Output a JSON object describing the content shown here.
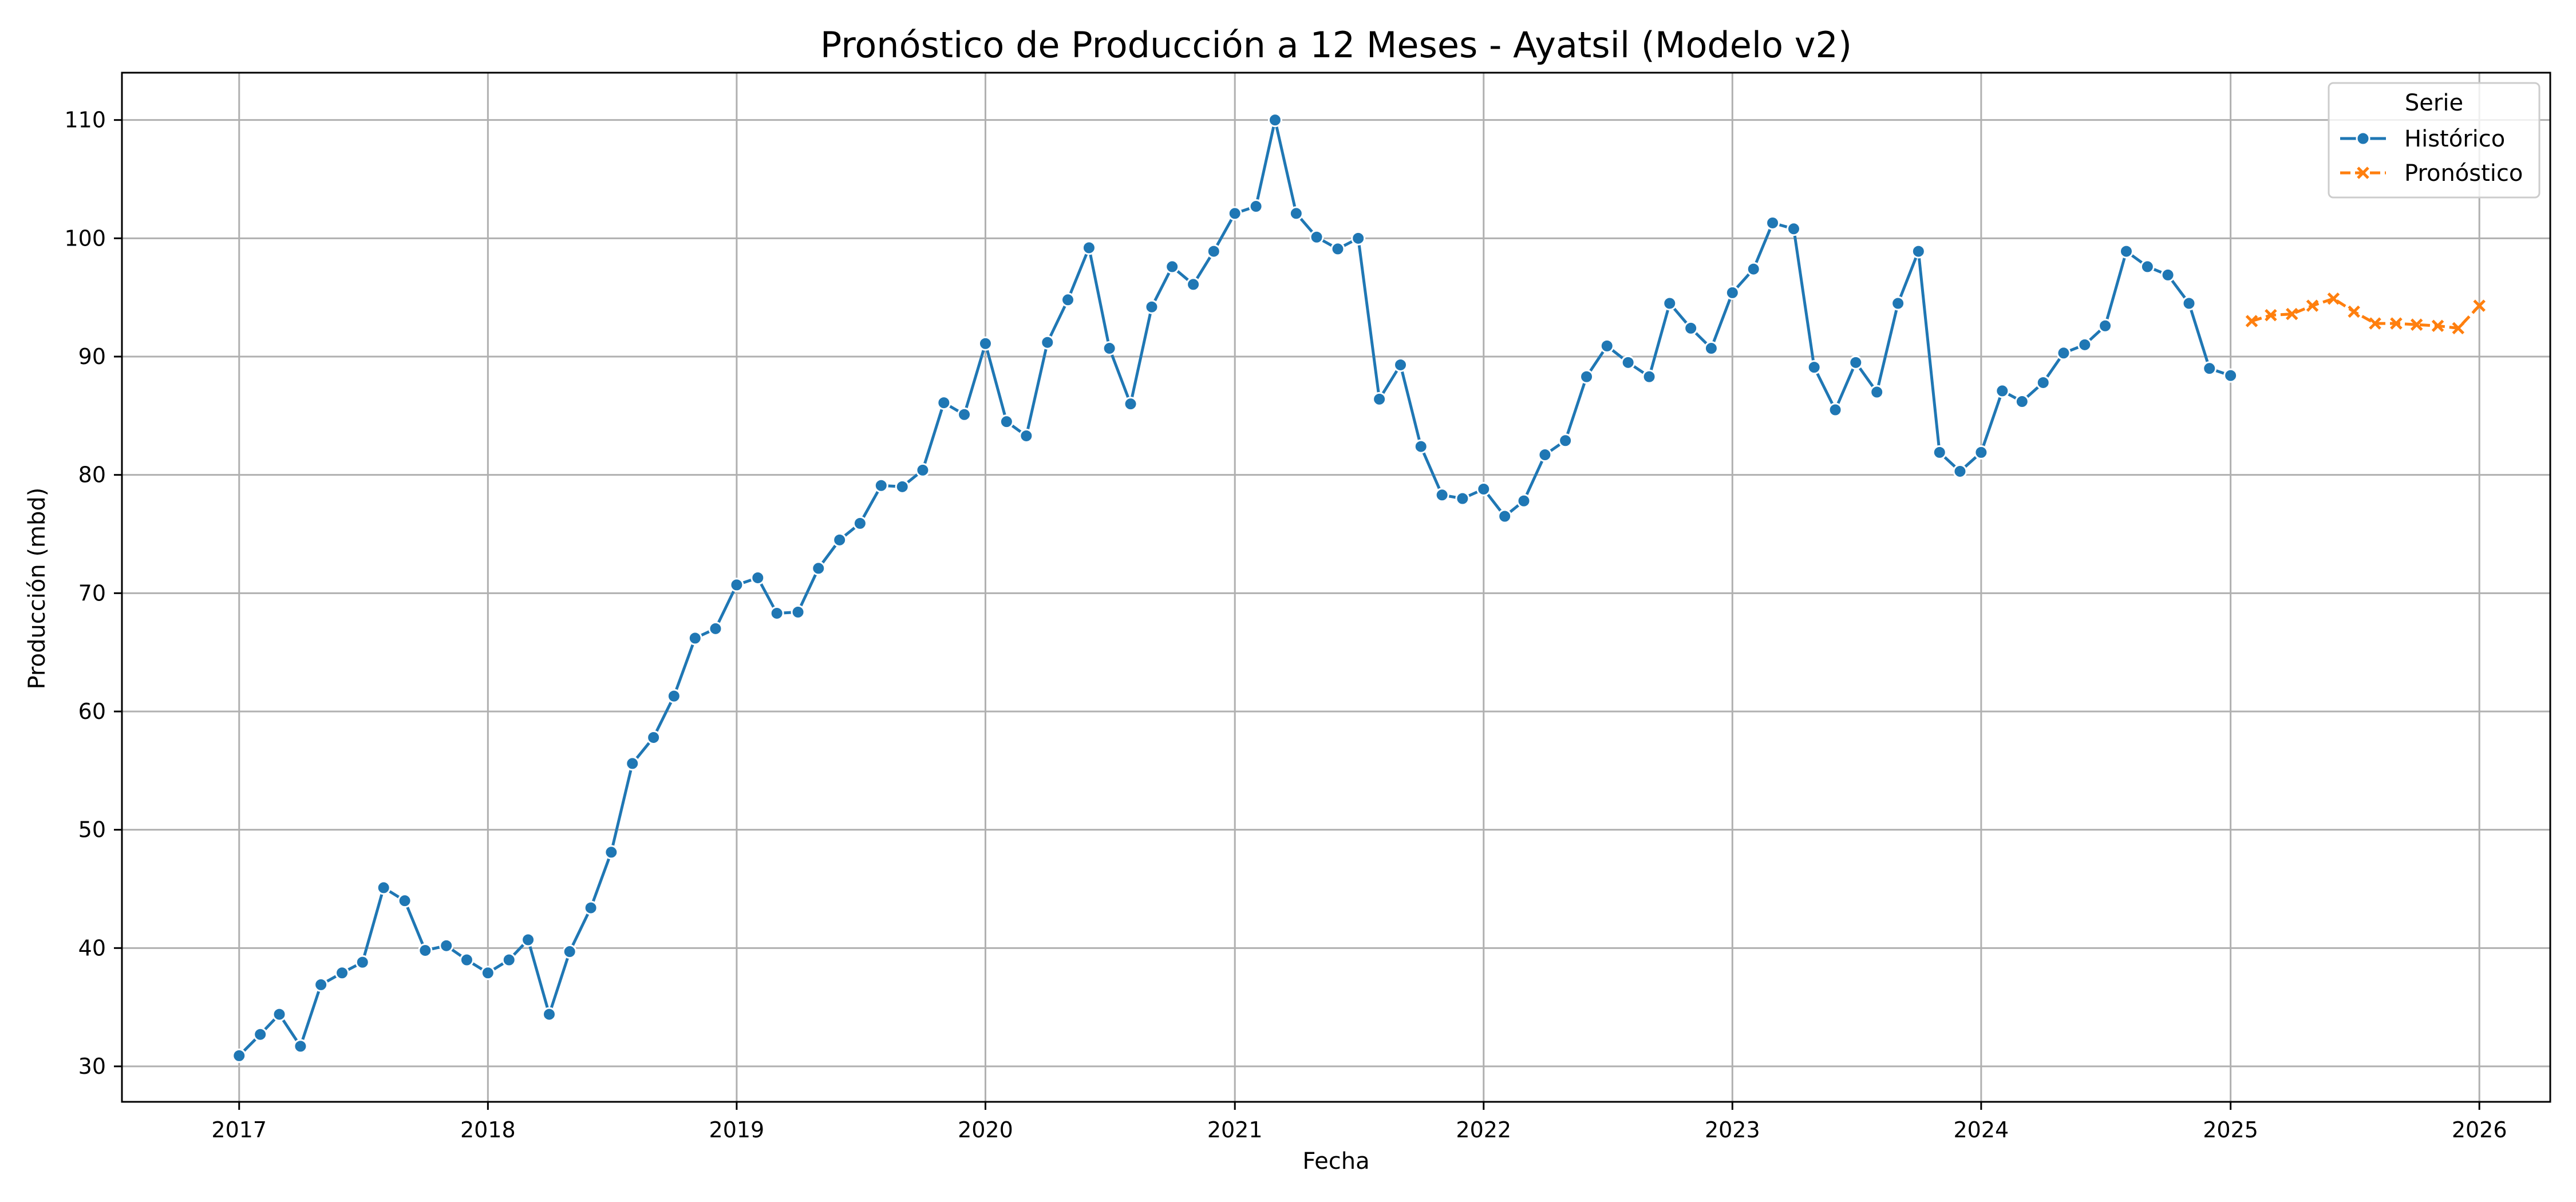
{
  "chart_data": {
    "type": "line",
    "title": "Pronóstico de Producción a 12 Meses - Ayatsil (Modelo v2)",
    "xlabel": "Fecha",
    "ylabel": "Producción (mbd)",
    "xlim": [
      "2016-07-13",
      "2026-04-15"
    ],
    "ylim": [
      27,
      114
    ],
    "x_ticks": [
      "2017",
      "2018",
      "2019",
      "2020",
      "2021",
      "2022",
      "2023",
      "2024",
      "2025",
      "2026"
    ],
    "y_ticks": [
      30,
      40,
      50,
      60,
      70,
      80,
      90,
      100,
      110
    ],
    "grid": true,
    "legend": {
      "title": "Serie",
      "position": "top-right"
    },
    "series": [
      {
        "name": "Histórico",
        "color": "#1f77b4",
        "marker": "circle",
        "line_style": "solid",
        "x": [
          "2017-01-01",
          "2017-02-01",
          "2017-03-01",
          "2017-04-01",
          "2017-05-01",
          "2017-06-01",
          "2017-07-01",
          "2017-08-01",
          "2017-09-01",
          "2017-10-01",
          "2017-11-01",
          "2017-12-01",
          "2018-01-01",
          "2018-02-01",
          "2018-03-01",
          "2018-04-01",
          "2018-05-01",
          "2018-06-01",
          "2018-07-01",
          "2018-08-01",
          "2018-09-01",
          "2018-10-01",
          "2018-11-01",
          "2018-12-01",
          "2019-01-01",
          "2019-02-01",
          "2019-03-01",
          "2019-04-01",
          "2019-05-01",
          "2019-06-01",
          "2019-07-01",
          "2019-08-01",
          "2019-09-01",
          "2019-10-01",
          "2019-11-01",
          "2019-12-01",
          "2020-01-01",
          "2020-02-01",
          "2020-03-01",
          "2020-04-01",
          "2020-05-01",
          "2020-06-01",
          "2020-07-01",
          "2020-08-01",
          "2020-09-01",
          "2020-10-01",
          "2020-11-01",
          "2020-12-01",
          "2021-01-01",
          "2021-02-01",
          "2021-03-01",
          "2021-04-01",
          "2021-05-01",
          "2021-06-01",
          "2021-07-01",
          "2021-08-01",
          "2021-09-01",
          "2021-10-01",
          "2021-11-01",
          "2021-12-01",
          "2022-01-01",
          "2022-02-01",
          "2022-03-01",
          "2022-04-01",
          "2022-05-01",
          "2022-06-01",
          "2022-07-01",
          "2022-08-01",
          "2022-09-01",
          "2022-10-01",
          "2022-11-01",
          "2022-12-01",
          "2023-01-01",
          "2023-02-01",
          "2023-03-01",
          "2023-04-01",
          "2023-05-01",
          "2023-06-01",
          "2023-07-01",
          "2023-08-01",
          "2023-09-01",
          "2023-10-01",
          "2023-11-01",
          "2023-12-01",
          "2024-01-01",
          "2024-02-01",
          "2024-03-01",
          "2024-04-01",
          "2024-05-01",
          "2024-06-01",
          "2024-07-01",
          "2024-08-01",
          "2024-09-01",
          "2024-10-01",
          "2024-11-01",
          "2024-12-01",
          "2025-01-01"
        ],
        "values": [
          30.9,
          32.7,
          34.4,
          31.7,
          36.9,
          37.9,
          38.8,
          45.1,
          44.0,
          39.8,
          40.2,
          39.0,
          37.9,
          39.0,
          40.7,
          34.4,
          39.7,
          43.4,
          48.1,
          55.6,
          57.8,
          61.3,
          66.2,
          67.0,
          70.7,
          71.3,
          68.3,
          68.4,
          72.1,
          74.5,
          75.9,
          79.1,
          79.0,
          80.4,
          86.1,
          85.1,
          91.1,
          84.5,
          83.3,
          91.2,
          94.8,
          99.2,
          90.7,
          86.0,
          94.2,
          97.6,
          96.1,
          98.9,
          102.1,
          102.7,
          110.0,
          102.1,
          100.1,
          99.1,
          100.0,
          86.4,
          89.3,
          82.4,
          78.3,
          78.0,
          78.8,
          76.5,
          77.8,
          81.7,
          82.9,
          88.3,
          90.9,
          89.5,
          88.3,
          94.5,
          92.4,
          90.7,
          95.4,
          97.4,
          101.3,
          100.8,
          89.1,
          85.5,
          89.5,
          87.0,
          94.5,
          98.9,
          81.9,
          80.3,
          81.9,
          87.1,
          86.2,
          87.8,
          90.3,
          91.0,
          92.6,
          98.9,
          97.6,
          96.9,
          94.5,
          89.0,
          88.4
        ]
      },
      {
        "name": "Pronóstico",
        "color": "#ff7f0e",
        "marker": "x",
        "line_style": "dashed",
        "x": [
          "2025-02-01",
          "2025-03-01",
          "2025-04-01",
          "2025-05-01",
          "2025-06-01",
          "2025-07-01",
          "2025-08-01",
          "2025-09-01",
          "2025-10-01",
          "2025-11-01",
          "2025-12-01",
          "2026-01-01"
        ],
        "values": [
          93.0,
          93.5,
          93.6,
          94.3,
          94.9,
          93.8,
          92.8,
          92.8,
          92.7,
          92.6,
          92.4,
          94.3
        ]
      }
    ]
  }
}
